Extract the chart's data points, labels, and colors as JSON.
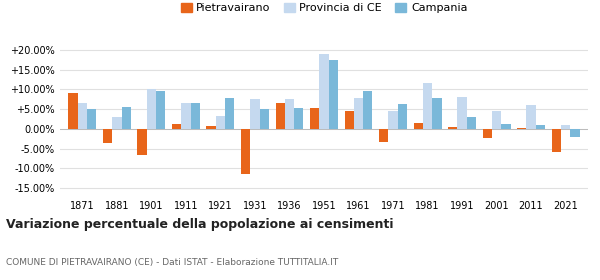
{
  "years": [
    1871,
    1881,
    1901,
    1911,
    1921,
    1931,
    1936,
    1951,
    1961,
    1971,
    1981,
    1991,
    2001,
    2011,
    2021
  ],
  "pietravairano": [
    9.0,
    -3.5,
    -6.5,
    1.2,
    0.8,
    -11.5,
    6.5,
    5.2,
    4.5,
    -3.3,
    1.5,
    0.5,
    -2.2,
    0.1,
    -5.8
  ],
  "provincia_ce": [
    6.5,
    3.0,
    10.0,
    6.5,
    3.2,
    7.5,
    7.5,
    19.0,
    7.8,
    4.5,
    11.5,
    8.0,
    4.5,
    6.0,
    1.0
  ],
  "campania": [
    5.0,
    5.5,
    9.5,
    6.5,
    7.8,
    5.0,
    5.2,
    17.5,
    9.5,
    6.2,
    7.8,
    3.0,
    1.2,
    1.0,
    -2.0
  ],
  "color_pietravairano": "#e8651a",
  "color_provincia": "#c5d9ef",
  "color_campania": "#7ab8d9",
  "title": "Variazione percentuale della popolazione ai censimenti",
  "subtitle": "COMUNE DI PIETRAVAIRANO (CE) - Dati ISTAT - Elaborazione TUTTITALIA.IT",
  "ylim": [
    -17,
    22
  ],
  "yticks": [
    -15.0,
    -10.0,
    -5.0,
    0.0,
    5.0,
    10.0,
    15.0,
    20.0
  ],
  "bar_width": 0.27,
  "legend_labels": [
    "Pietravairano",
    "Provincia di CE",
    "Campania"
  ],
  "grid_color": "#e0e0e0",
  "background_color": "#ffffff"
}
